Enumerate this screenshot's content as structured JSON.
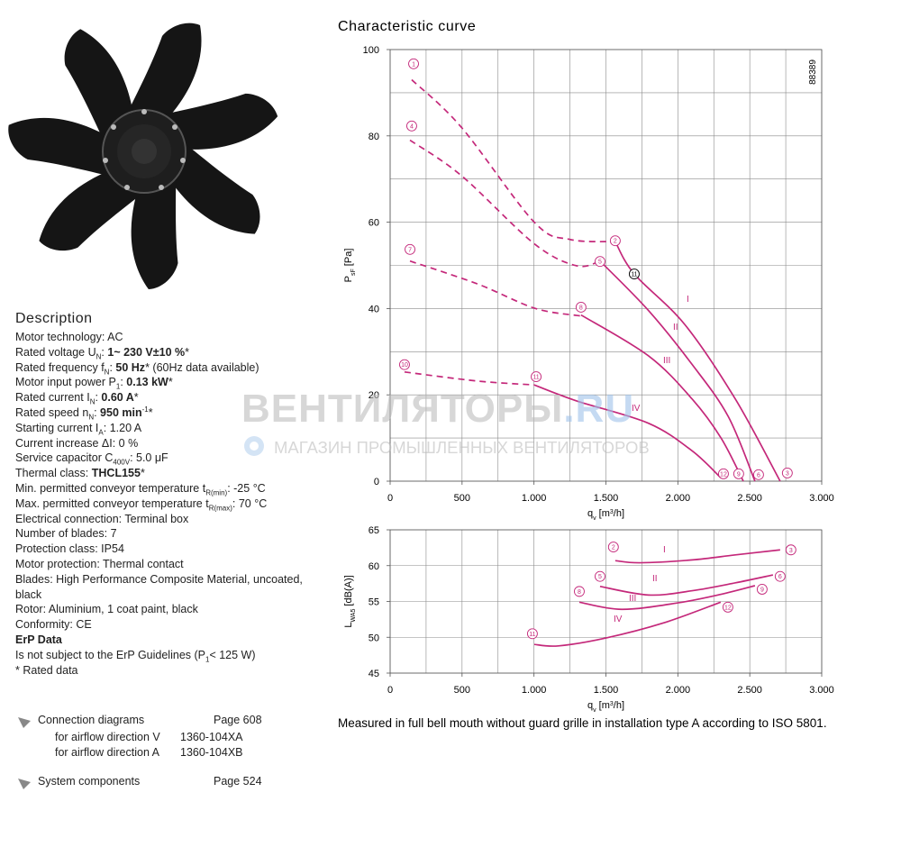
{
  "description": {
    "heading": "Description",
    "rows": [
      "Motor technology: AC",
      [
        "Rated voltage U",
        {
          "text": "N",
          "style": "sub"
        },
        ": ",
        {
          "text": "1~ 230 V±10 %",
          "style": "b"
        },
        "*"
      ],
      [
        "Rated frequency f",
        {
          "text": "N",
          "style": "sub"
        },
        ": ",
        {
          "text": "50 Hz",
          "style": "b"
        },
        "* (60Hz data available)"
      ],
      [
        "Motor input power P",
        {
          "text": "1",
          "style": "sub"
        },
        ": ",
        {
          "text": "0.13 kW",
          "style": "b"
        },
        "*"
      ],
      [
        "Rated current I",
        {
          "text": "N",
          "style": "sub"
        },
        ": ",
        {
          "text": "0.60 A",
          "style": "b"
        },
        "*"
      ],
      [
        "Rated speed n",
        {
          "text": "N",
          "style": "sub"
        },
        ": ",
        {
          "text": "950 min",
          "style": "b"
        },
        {
          "text": "-1",
          "style": "sup"
        },
        "*"
      ],
      [
        "Starting current I",
        {
          "text": "A",
          "style": "sub"
        },
        ": 1.20 A"
      ],
      "Current increase ΔI: 0 %",
      [
        "Service capacitor C",
        {
          "text": "400V",
          "style": "sub"
        },
        ": 5.0 μF"
      ],
      [
        "Thermal class: ",
        {
          "text": "THCL155",
          "style": "b"
        },
        "*"
      ],
      [
        "Min. permitted conveyor temperature t",
        {
          "text": "R(min)",
          "style": "sub"
        },
        ": -25 °C"
      ],
      [
        "Max. permitted conveyor temperature t",
        {
          "text": "R(max)",
          "style": "sub"
        },
        ": 70 °C"
      ],
      "Electrical connection: Terminal box",
      "Number of blades: 7",
      "Protection class: IP54",
      "Motor protection: Thermal contact",
      "Blades: High Performance Composite Material, uncoated, black",
      "Rotor: Aluminium, 1 coat paint, black",
      "Conformity:  CE",
      [
        {
          "text": "ErP Data",
          "style": "b"
        }
      ],
      [
        "Is not subject to the ErP Guidelines (P",
        {
          "text": "1",
          "style": "sub"
        },
        "< 125 W)"
      ],
      "* Rated data"
    ]
  },
  "links": [
    {
      "title": "Connection diagrams",
      "page": "Page 608",
      "items": [
        {
          "label": "for airflow direction V",
          "code": "1360-104XA"
        },
        {
          "label": "for airflow direction A",
          "code": "1360-104XB"
        }
      ]
    },
    {
      "title": "System components",
      "page": "Page 524"
    }
  ],
  "watermark": {
    "brand": "ВЕНТИЛЯТОРЫ",
    "domain": ".RU",
    "tagline": "МАГАЗИН ПРОМЫШЛЕННЫХ ВЕНТИЛЯТОРОВ"
  },
  "chart_title": "Characteristic curve",
  "caption": "Measured in full bell mouth without guard grille in installation type A according to ISO 5801.",
  "chart_data": [
    {
      "type": "line",
      "annotation": "88389",
      "ylabel": [
        "P",
        {
          "text": "sF",
          "style": "sub"
        },
        " [Pa]"
      ],
      "xlabel": [
        "q",
        {
          "text": "v",
          "style": "sub"
        },
        " [m",
        {
          "text": "3",
          "style": "sup"
        },
        "/h]"
      ],
      "xlim": [
        0,
        3000
      ],
      "ylim": [
        0,
        100
      ],
      "xticks": [
        0,
        500,
        {
          "value": 1000,
          "label": "1.000"
        },
        {
          "value": 1500,
          "label": "1.500"
        },
        {
          "value": 2000,
          "label": "2.000"
        },
        {
          "value": 2500,
          "label": "2.500"
        },
        {
          "value": 3000,
          "label": "3.000"
        }
      ],
      "yticks": [
        0,
        20,
        40,
        60,
        80,
        100
      ],
      "grid": true,
      "xgrid": [
        0,
        250,
        500,
        750,
        1000,
        1250,
        1500,
        1750,
        2000,
        2250,
        2500,
        2750,
        3000
      ],
      "ygrid": [
        0,
        10,
        20,
        30,
        40,
        50,
        60,
        70,
        80,
        90,
        100
      ],
      "series": [
        {
          "color": "#c4287a",
          "dash": true,
          "x": [
            150,
            495,
            1002,
            1250,
            1565
          ],
          "values": [
            93,
            82,
            60,
            56,
            55.5
          ]
        },
        {
          "name": "I",
          "color": "#c4287a",
          "x": [
            1565,
            1697,
            2048,
            2400,
            2711
          ],
          "values": [
            55.5,
            48,
            36.3,
            19,
            0
          ]
        },
        {
          "color": "#c4287a",
          "dash": true,
          "x": [
            138,
            495,
            1002,
            1296,
            1459
          ],
          "values": [
            79,
            70.8,
            55,
            49.9,
            51
          ]
        },
        {
          "name": "II",
          "color": "#c4287a",
          "x": [
            1459,
            1797,
            2100,
            2350,
            2536
          ],
          "values": [
            51,
            39.5,
            27,
            15,
            0
          ]
        },
        {
          "color": "#c4287a",
          "dash": true,
          "x": [
            138,
            607,
            1002,
            1296,
            1327
          ],
          "values": [
            51,
            45.7,
            40.1,
            38.4,
            38.5
          ]
        },
        {
          "name": "III",
          "color": "#c4287a",
          "x": [
            1327,
            1797,
            2100,
            2300,
            2455
          ],
          "values": [
            38.5,
            29,
            19,
            10,
            0
          ]
        },
        {
          "color": "#c4287a",
          "dash": true,
          "x": [
            100,
            607,
            1002
          ],
          "values": [
            25.3,
            23.2,
            22.3
          ]
        },
        {
          "name": "IV",
          "color": "#c4287a",
          "x": [
            1002,
            1296,
            1797,
            2100,
            2298
          ],
          "values": [
            22.3,
            18.6,
            13.4,
            7,
            0.8
          ]
        }
      ],
      "markers": [
        {
          "label": "1",
          "x": 163,
          "y": 96.7,
          "color": "#c4287a"
        },
        {
          "label": "2",
          "x": 1565,
          "y": 55.7,
          "color": "#c4287a"
        },
        {
          "label": "3",
          "x": 2761,
          "y": 1.9,
          "color": "#c4287a"
        },
        {
          "label": "4",
          "x": 150,
          "y": 82.3,
          "color": "#c4287a"
        },
        {
          "label": "5",
          "x": 1459,
          "y": 50.9,
          "color": "#c4287a"
        },
        {
          "label": "6",
          "x": 2561,
          "y": 1.5,
          "color": "#c4287a"
        },
        {
          "label": "7",
          "x": 138,
          "y": 53.7,
          "color": "#c4287a"
        },
        {
          "label": "8",
          "x": 1327,
          "y": 40.3,
          "color": "#c4287a"
        },
        {
          "label": "9",
          "x": 2423,
          "y": 1.7,
          "color": "#c4287a"
        },
        {
          "label": "10",
          "x": 100,
          "y": 27,
          "color": "#c4287a"
        },
        {
          "label": "11",
          "x": 1015,
          "y": 24.2,
          "color": "#c4287a"
        },
        {
          "label": "12",
          "x": 2317,
          "y": 1.7,
          "color": "#c4287a"
        },
        {
          "label": "11",
          "x": 1697,
          "y": 48,
          "color": "#000000"
        }
      ]
    },
    {
      "type": "line",
      "ylabel": [
        "L",
        {
          "text": "WA5",
          "style": "sub"
        },
        " [dB(A)]"
      ],
      "xlabel": [
        "q",
        {
          "text": "v",
          "style": "sub"
        },
        " [m",
        {
          "text": "3",
          "style": "sup"
        },
        "/h]"
      ],
      "xlim": [
        0,
        3000
      ],
      "ylim": [
        45,
        65
      ],
      "xticks": [
        0,
        500,
        {
          "value": 1000,
          "label": "1.000"
        },
        {
          "value": 1500,
          "label": "1.500"
        },
        {
          "value": 2000,
          "label": "2.000"
        },
        {
          "value": 2500,
          "label": "2.500"
        },
        {
          "value": 3000,
          "label": "3.000"
        }
      ],
      "yticks": [
        45,
        50,
        55,
        60,
        65
      ],
      "grid": true,
      "xgrid": [
        0,
        250,
        500,
        750,
        1000,
        1250,
        1500,
        1750,
        2000,
        2250,
        2500,
        2750,
        3000
      ],
      "ygrid": [
        45,
        50,
        55,
        60,
        65
      ],
      "series": [
        {
          "name": "I",
          "color": "#c4287a",
          "x": [
            1565,
            1735,
            2100,
            2400,
            2711
          ],
          "values": [
            60.7,
            60.4,
            60.8,
            61.5,
            62.2
          ]
        },
        {
          "name": "II",
          "color": "#c4287a",
          "x": [
            1459,
            1797,
            2100,
            2400,
            2661
          ],
          "values": [
            57.1,
            55.9,
            56.5,
            57.6,
            58.7
          ]
        },
        {
          "name": "III",
          "color": "#c4287a",
          "x": [
            1315,
            1610,
            2000,
            2300,
            2536
          ],
          "values": [
            54.9,
            53.9,
            54.8,
            56,
            57.2
          ]
        },
        {
          "name": "IV",
          "color": "#c4287a",
          "x": [
            1002,
            1171,
            1500,
            1900,
            2298
          ],
          "values": [
            49,
            48.8,
            49.9,
            52,
            54.9
          ]
        }
      ],
      "markers": [
        {
          "label": "2",
          "x": 1552,
          "y": 62.6,
          "color": "#c4287a"
        },
        {
          "label": "3",
          "x": 2786,
          "y": 62.2,
          "color": "#c4287a"
        },
        {
          "label": "5",
          "x": 1459,
          "y": 58.5,
          "color": "#c4287a"
        },
        {
          "label": "6",
          "x": 2711,
          "y": 58.5,
          "color": "#c4287a"
        },
        {
          "label": "8",
          "x": 1315,
          "y": 56.4,
          "color": "#c4287a"
        },
        {
          "label": "9",
          "x": 2586,
          "y": 56.7,
          "color": "#c4287a"
        },
        {
          "label": "11",
          "x": 989,
          "y": 50.5,
          "color": "#c4287a"
        },
        {
          "label": "12",
          "x": 2348,
          "y": 54.2,
          "color": "#c4287a"
        }
      ]
    }
  ]
}
